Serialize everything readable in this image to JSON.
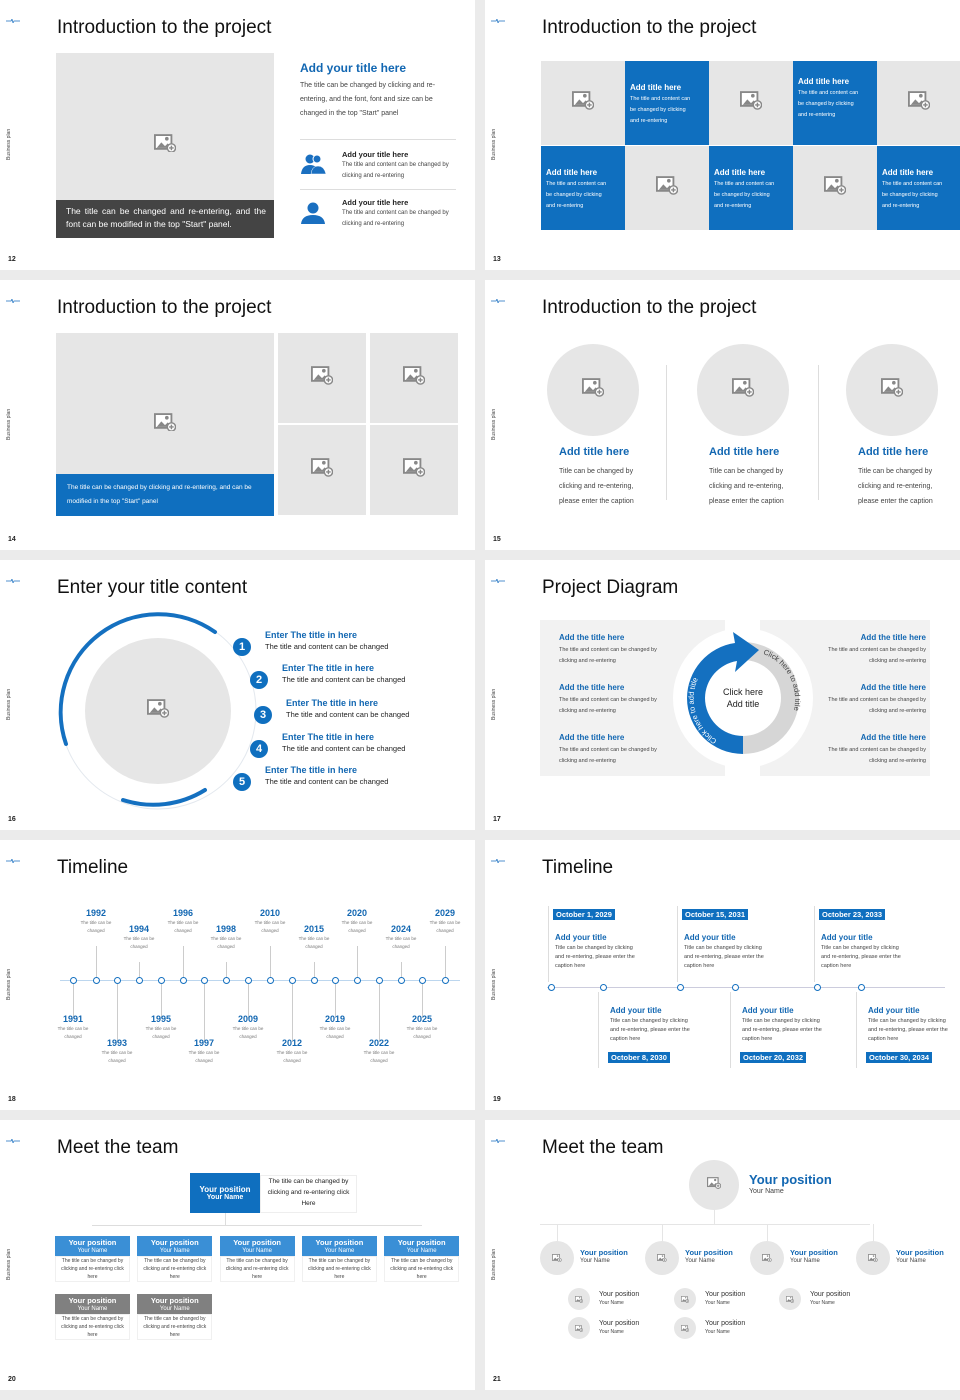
{
  "side_label": "Business plan",
  "colors": {
    "accent": "#0f6fbf",
    "placeholder": "#e6e6e6",
    "dark_caption": "#444444",
    "muted_box": "#808080"
  },
  "slides": [
    {
      "num": "12",
      "title": "Introduction to the project",
      "caption": "The title can be changed and re-entering, and the font can be modified in the top \"Start\" panel.",
      "main_title": "Add your title here",
      "main_text": "The title can be changed by clicking and re-entering, and the font, font and size can be changed in the top \"Start\" panel",
      "items": [
        {
          "icon": "users-icon",
          "title": "Add your title here",
          "text": "The title and content can be changed by clicking and re-entering"
        },
        {
          "icon": "user-icon",
          "title": "Add your title here",
          "text": "The title and content can be changed by clicking and re-entering"
        }
      ]
    },
    {
      "num": "13",
      "title": "Introduction to the project",
      "tiles": [
        {
          "title": "Add title here",
          "text": "The title and content can be changed by clicking and re-entering"
        },
        {
          "title": "Add title here",
          "text": "The title and content can be changed by clicking and re-entering"
        },
        {
          "title": "Add title here",
          "text": "The title and content can be changed by clicking and re-entering"
        },
        {
          "title": "Add title here",
          "text": "The title and content can be changed by clicking and re-entering"
        },
        {
          "title": "Add title here",
          "text": "The title and content can be changed by clicking and re-entering"
        }
      ]
    },
    {
      "num": "14",
      "title": "Introduction to the project",
      "caption": "The title can be changed by clicking and re-entering, and can be modified in the top \"Start\" panel"
    },
    {
      "num": "15",
      "title": "Introduction to the project",
      "cols": [
        {
          "title": "Add title here",
          "text": "Title can be changed by clicking and re-entering, please enter the caption"
        },
        {
          "title": "Add title here",
          "text": "Title can be changed by clicking and re-entering, please enter the caption"
        },
        {
          "title": "Add title here",
          "text": "Title can be changed by clicking and re-entering, please enter the caption"
        }
      ]
    },
    {
      "num": "16",
      "title": "Enter your title content",
      "items": [
        {
          "n": "1",
          "title": "Enter The title in here",
          "text": "The title and content can be changed"
        },
        {
          "n": "2",
          "title": "Enter The title in here",
          "text": "The title and content can be changed"
        },
        {
          "n": "3",
          "title": "Enter The title in here",
          "text": "The title and content can be changed"
        },
        {
          "n": "4",
          "title": "Enter The title in here",
          "text": "The title and content can be changed"
        },
        {
          "n": "5",
          "title": "Enter The title in here",
          "text": "The title and content can be changed"
        }
      ]
    },
    {
      "num": "17",
      "title": "Project Diagram",
      "center_line1": "Click here",
      "center_line2": "Add title",
      "arc_left": "Click here to add title",
      "arc_right": "Click here to add title",
      "items": [
        {
          "title": "Add the title here",
          "text": "The title and content can be changed by clicking and re-entering"
        },
        {
          "title": "Add the title here",
          "text": "The title and content can be changed by clicking and re-entering"
        },
        {
          "title": "Add the title here",
          "text": "The title and content can be changed by clicking and re-entering"
        },
        {
          "title": "Add the title here",
          "text": "The title and content can be changed by clicking and re-entering"
        },
        {
          "title": "Add the title here",
          "text": "The title and content can be changed by clicking and re-entering"
        },
        {
          "title": "Add the title here",
          "text": "The title and content can be changed by clicking and re-entering"
        }
      ]
    },
    {
      "num": "18",
      "title": "Timeline",
      "events": [
        {
          "year": "1991",
          "pos": "bottom-near",
          "text": "The title can be changed"
        },
        {
          "year": "1992",
          "pos": "top-high",
          "text": "The title can be changed"
        },
        {
          "year": "1993",
          "pos": "bottom-far",
          "text": "The title can be changed"
        },
        {
          "year": "1994",
          "pos": "top-low",
          "text": "The title can be changed"
        },
        {
          "year": "1995",
          "pos": "bottom-near",
          "text": "The title can be changed"
        },
        {
          "year": "1996",
          "pos": "top-high",
          "text": "The title can be changed"
        },
        {
          "year": "1997",
          "pos": "bottom-far",
          "text": "The title can be changed"
        },
        {
          "year": "1998",
          "pos": "top-low",
          "text": "The title can be changed"
        },
        {
          "year": "2009",
          "pos": "bottom-near",
          "text": "The title can be changed"
        },
        {
          "year": "2010",
          "pos": "top-high",
          "text": "The title can be changed"
        },
        {
          "year": "2012",
          "pos": "bottom-far",
          "text": "The title can be changed"
        },
        {
          "year": "2015",
          "pos": "top-low",
          "text": "The title can be changed"
        },
        {
          "year": "2019",
          "pos": "bottom-near",
          "text": "The title can be changed"
        },
        {
          "year": "2020",
          "pos": "top-high",
          "text": "The title can be changed"
        },
        {
          "year": "2022",
          "pos": "bottom-far",
          "text": "The title can be changed"
        },
        {
          "year": "2024",
          "pos": "top-low",
          "text": "The title can be changed"
        },
        {
          "year": "2025",
          "pos": "bottom-near",
          "text": "The title can be changed"
        },
        {
          "year": "2029",
          "pos": "top-high",
          "text": "The title can be changed"
        }
      ]
    },
    {
      "num": "19",
      "title": "Timeline",
      "events": [
        {
          "date": "October 1, 2029",
          "side": "top",
          "title": "Add your title",
          "text": "Title can be changed by clicking and re-entering, please enter the caption here"
        },
        {
          "date": "October 8, 2030",
          "side": "bottom",
          "title": "Add your title",
          "text": "Title can be changed by clicking and re-entering, please enter the caption here"
        },
        {
          "date": "October 15, 2031",
          "side": "top",
          "title": "Add your title",
          "text": "Title can be changed by clicking and re-entering, please enter the caption here"
        },
        {
          "date": "October 20, 2032",
          "side": "bottom",
          "title": "Add your title",
          "text": "Title can be changed by clicking and re-entering, please enter the caption here"
        },
        {
          "date": "October 23, 2033",
          "side": "top",
          "title": "Add your title",
          "text": "Title can be changed by clicking and re-entering, please enter the caption here"
        },
        {
          "date": "October 30, 2034",
          "side": "bottom",
          "title": "Add your title",
          "text": "Title can be changed by clicking and re-entering, please enter the caption here"
        }
      ]
    },
    {
      "num": "20",
      "title": "Meet the team",
      "head": {
        "position": "Your position",
        "name": "Your Name",
        "text": "The title can be changed by clicking and re-entering click Here"
      },
      "members": [
        {
          "position": "Your position",
          "name": "Your Name",
          "text": "The title can be changed by clicking and re-entering click here"
        },
        {
          "position": "Your position",
          "name": "Your Name",
          "text": "The title can be changed by clicking and re-entering click here"
        },
        {
          "position": "Your position",
          "name": "Your Name",
          "text": "The title can be changed by clicking and re-entering click here"
        },
        {
          "position": "Your position",
          "name": "Your Name",
          "text": "The title can be changed by clicking and re-entering click here"
        },
        {
          "position": "Your position",
          "name": "Your Name",
          "text": "The title can be changed by clicking and re-entering click here"
        },
        {
          "position": "Your position",
          "name": "Your Name",
          "text": "The title can be changed by clicking and re-entering click here"
        },
        {
          "position": "Your position",
          "name": "Your Name",
          "text": "The title can be changed by clicking and re-entering click here"
        }
      ]
    },
    {
      "num": "21",
      "title": "Meet the team",
      "head": {
        "position": "Your position",
        "name": "Your Name"
      },
      "level2": [
        {
          "position": "Your position",
          "name": "Your Name"
        },
        {
          "position": "Your position",
          "name": "Your Name"
        },
        {
          "position": "Your position",
          "name": "Your Name"
        },
        {
          "position": "Your position",
          "name": "Your Name"
        }
      ],
      "level3": [
        {
          "position": "Your position",
          "name": "Your Name"
        },
        {
          "position": "Your position",
          "name": "Your Name"
        },
        {
          "position": "Your position",
          "name": "Your Name"
        },
        {
          "position": "Your position",
          "name": "Your Name"
        },
        {
          "position": "Your position",
          "name": "Your Name"
        }
      ]
    }
  ]
}
